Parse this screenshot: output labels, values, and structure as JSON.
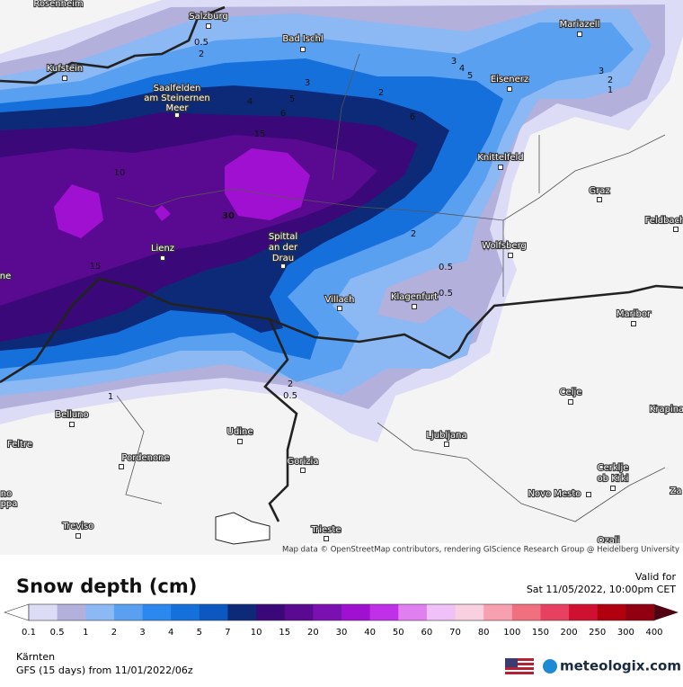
{
  "map": {
    "cities": [
      "Rosenheim",
      "Salzburg",
      "Bad Ischl",
      "Kufstein",
      "Mariazell",
      "Eisenerz",
      "Saalfelden",
      "am Steinernen",
      "Meer",
      "Knittelfeld",
      "Graz",
      "Feldbach",
      "Lienz",
      "Spittal",
      "an der",
      "Drau",
      "Wolfsberg",
      "Villach",
      "Klagenfurt",
      "Maribor",
      "Celje",
      "Krapina",
      "Belluno",
      "Feltre",
      "Udine",
      "Pordenone",
      "Ljubljana",
      "Gorizia",
      "Cerklje",
      "ob Krki",
      "Novo Mesto",
      "Treviso",
      "Trieste",
      "Ozalj",
      "ne",
      "Za",
      "no",
      "ppa"
    ],
    "contour_labels": [
      "0.5",
      "2",
      "3",
      "4",
      "5",
      "6",
      "10",
      "15",
      "30",
      "2",
      "3",
      "4",
      "5",
      "6",
      "3",
      "2",
      "1",
      "2",
      "0.5",
      "0.5",
      "15",
      "1",
      "2",
      "0.5"
    ],
    "attribution": "Map data © OpenStreetMap contributors, rendering GIScience Research Group @ Heidelberg University"
  },
  "legend": {
    "title": "Snow depth (cm)",
    "labels": [
      "0.1",
      "0.5",
      "1",
      "2",
      "3",
      "4",
      "5",
      "7",
      "10",
      "15",
      "20",
      "30",
      "40",
      "50",
      "60",
      "70",
      "80",
      "100",
      "150",
      "200",
      "250",
      "300",
      "400"
    ],
    "colors": [
      "#dcdcf6",
      "#b4b0dc",
      "#8cb8f4",
      "#5aa0f0",
      "#2c88ee",
      "#1670dc",
      "#0c58c0",
      "#0c2a78",
      "#3a0878",
      "#5a0a90",
      "#7a10b0",
      "#a010d0",
      "#c030e8",
      "#e080f0",
      "#f0c0f8",
      "#f8d0e0",
      "#f8a0b0",
      "#f07080",
      "#e84060",
      "#d01030",
      "#b00010",
      "#900010"
    ],
    "below_color": "#ffffff",
    "above_color": "#500010"
  },
  "valid": {
    "label": "Valid for",
    "time": "Sat 11/05/2022, 10:00pm CET"
  },
  "footer": {
    "region": "Kärnten",
    "model": "GFS (15 days) from 11/01/2022/06z",
    "brand": "meteologix.com"
  }
}
